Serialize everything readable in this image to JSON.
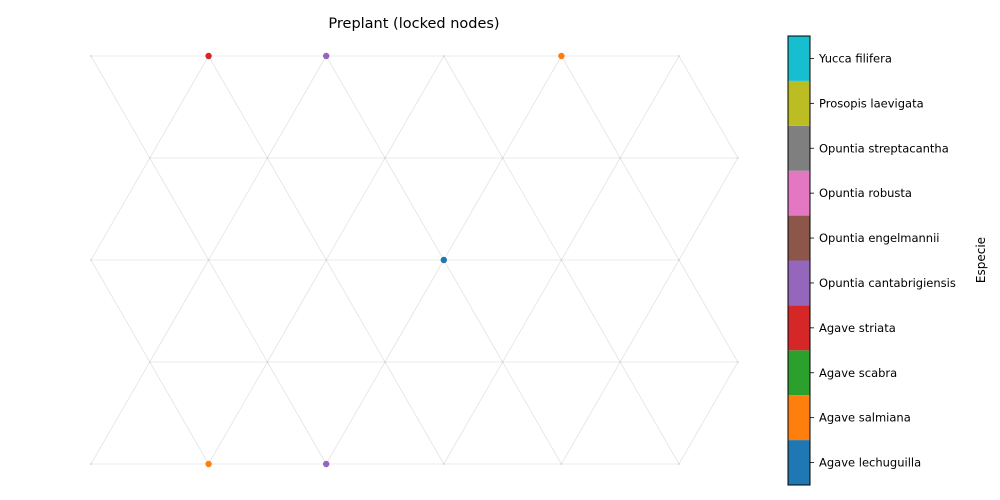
{
  "chart_data": {
    "type": "scatter",
    "title": "Preplant (locked nodes)",
    "colorbar_label": "Especie",
    "grid": "triangular lattice",
    "lattice": {
      "rows": [
        {
          "row": 0,
          "x": [
            0,
            1,
            2,
            3,
            4,
            5
          ]
        },
        {
          "row": 1,
          "x": [
            0.5,
            1.5,
            2.5,
            3.5,
            4.5,
            5.5
          ]
        },
        {
          "row": 2,
          "x": [
            0,
            1,
            2,
            3,
            4,
            5
          ]
        },
        {
          "row": 3,
          "x": [
            0.5,
            1.5,
            2.5,
            3.5,
            4.5,
            5.5
          ]
        },
        {
          "row": 4,
          "x": [
            0,
            1,
            2,
            3,
            4,
            5
          ]
        }
      ]
    },
    "species": [
      {
        "name": "Agave lechuguilla",
        "color": "#1f77b4"
      },
      {
        "name": "Agave salmiana",
        "color": "#ff7f0e"
      },
      {
        "name": "Agave scabra",
        "color": "#2ca02c"
      },
      {
        "name": "Agave striata",
        "color": "#d62728"
      },
      {
        "name": "Opuntia cantabrigiensis",
        "color": "#9467bd"
      },
      {
        "name": "Opuntia engelmannii",
        "color": "#8c564b"
      },
      {
        "name": "Opuntia robusta",
        "color": "#e377c2"
      },
      {
        "name": "Opuntia streptacantha",
        "color": "#7f7f7f"
      },
      {
        "name": "Prosopis laevigata",
        "color": "#bcbd22"
      },
      {
        "name": "Yucca filifera",
        "color": "#17becf"
      }
    ],
    "points": [
      {
        "x": 1,
        "row": 0,
        "species": "Agave striata"
      },
      {
        "x": 2,
        "row": 0,
        "species": "Opuntia cantabrigiensis"
      },
      {
        "x": 4,
        "row": 0,
        "species": "Agave salmiana"
      },
      {
        "x": 3,
        "row": 2,
        "species": "Agave lechuguilla"
      },
      {
        "x": 1,
        "row": 4,
        "species": "Agave salmiana"
      },
      {
        "x": 2,
        "row": 4,
        "species": "Opuntia cantabrigiensis"
      }
    ]
  }
}
